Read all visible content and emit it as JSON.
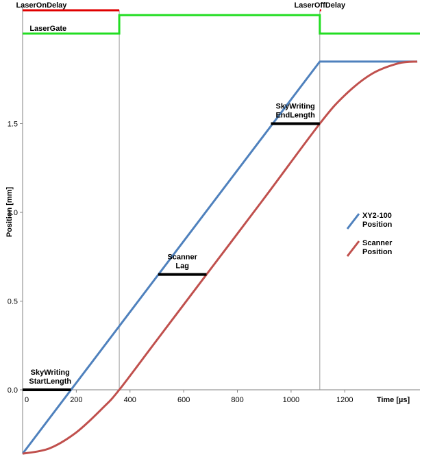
{
  "chart_data": {
    "type": "line",
    "xlabel": "Time [µs]",
    "ylabel": "Position [mm]",
    "xlim": [
      0,
      1480
    ],
    "ylim": [
      -0.36,
      2.2
    ],
    "x_ticks": [
      0,
      200,
      400,
      600,
      800,
      1000,
      1200
    ],
    "y_ticks": [
      0.0,
      0.5,
      1.0,
      1.5
    ],
    "y_tick_labels": [
      "0.0",
      "0.5",
      "1.0",
      "1.5"
    ],
    "grid": false,
    "vertical_markers": [
      360,
      1107
    ],
    "legend_position": "right",
    "series": [
      {
        "name": "XY2-100 Position",
        "color": "#4f81bd",
        "points": [
          [
            0,
            -0.36
          ],
          [
            1107,
            1.85
          ],
          [
            1470,
            1.85
          ]
        ]
      },
      {
        "name": "Scanner Position",
        "color": "#c0504d",
        "points": [
          [
            0,
            -0.36
          ],
          [
            100,
            -0.33
          ],
          [
            200,
            -0.24
          ],
          [
            300,
            -0.1
          ],
          [
            360,
            0.0
          ],
          [
            500,
            0.28
          ],
          [
            700,
            0.68
          ],
          [
            900,
            1.08
          ],
          [
            1107,
            1.5
          ],
          [
            1200,
            1.66
          ],
          [
            1300,
            1.78
          ],
          [
            1400,
            1.84
          ],
          [
            1470,
            1.85
          ]
        ]
      }
    ],
    "signals": [
      {
        "name": "LaserOnDelay",
        "color": "#e00000",
        "label_x": 70,
        "segments": [
          [
            0,
            360
          ]
        ]
      },
      {
        "name": "LaserOffDelay",
        "color": "#e00000",
        "label_x": 1107,
        "segments": [
          [
            1107,
            1110
          ]
        ]
      },
      {
        "name": "LaserGate",
        "color": "#22dd22",
        "label_x": 95,
        "levels": [
          [
            0,
            "low"
          ],
          [
            360,
            "high"
          ],
          [
            1107,
            "low"
          ],
          [
            1480,
            "low"
          ]
        ]
      }
    ],
    "annotations": [
      {
        "name": "skywriting-start",
        "lines": [
          "SkyWriting",
          "StartLength"
        ],
        "bar": [
          0,
          180
        ],
        "y": 0.0
      },
      {
        "name": "scanner-lag",
        "lines": [
          "Scanner",
          "Lag"
        ],
        "bar": [
          505,
          685
        ],
        "y": 0.65
      },
      {
        "name": "skywriting-end",
        "lines": [
          "SkyWriting",
          "EndLength"
        ],
        "bar": [
          925,
          1107
        ],
        "y": 1.5
      }
    ]
  }
}
